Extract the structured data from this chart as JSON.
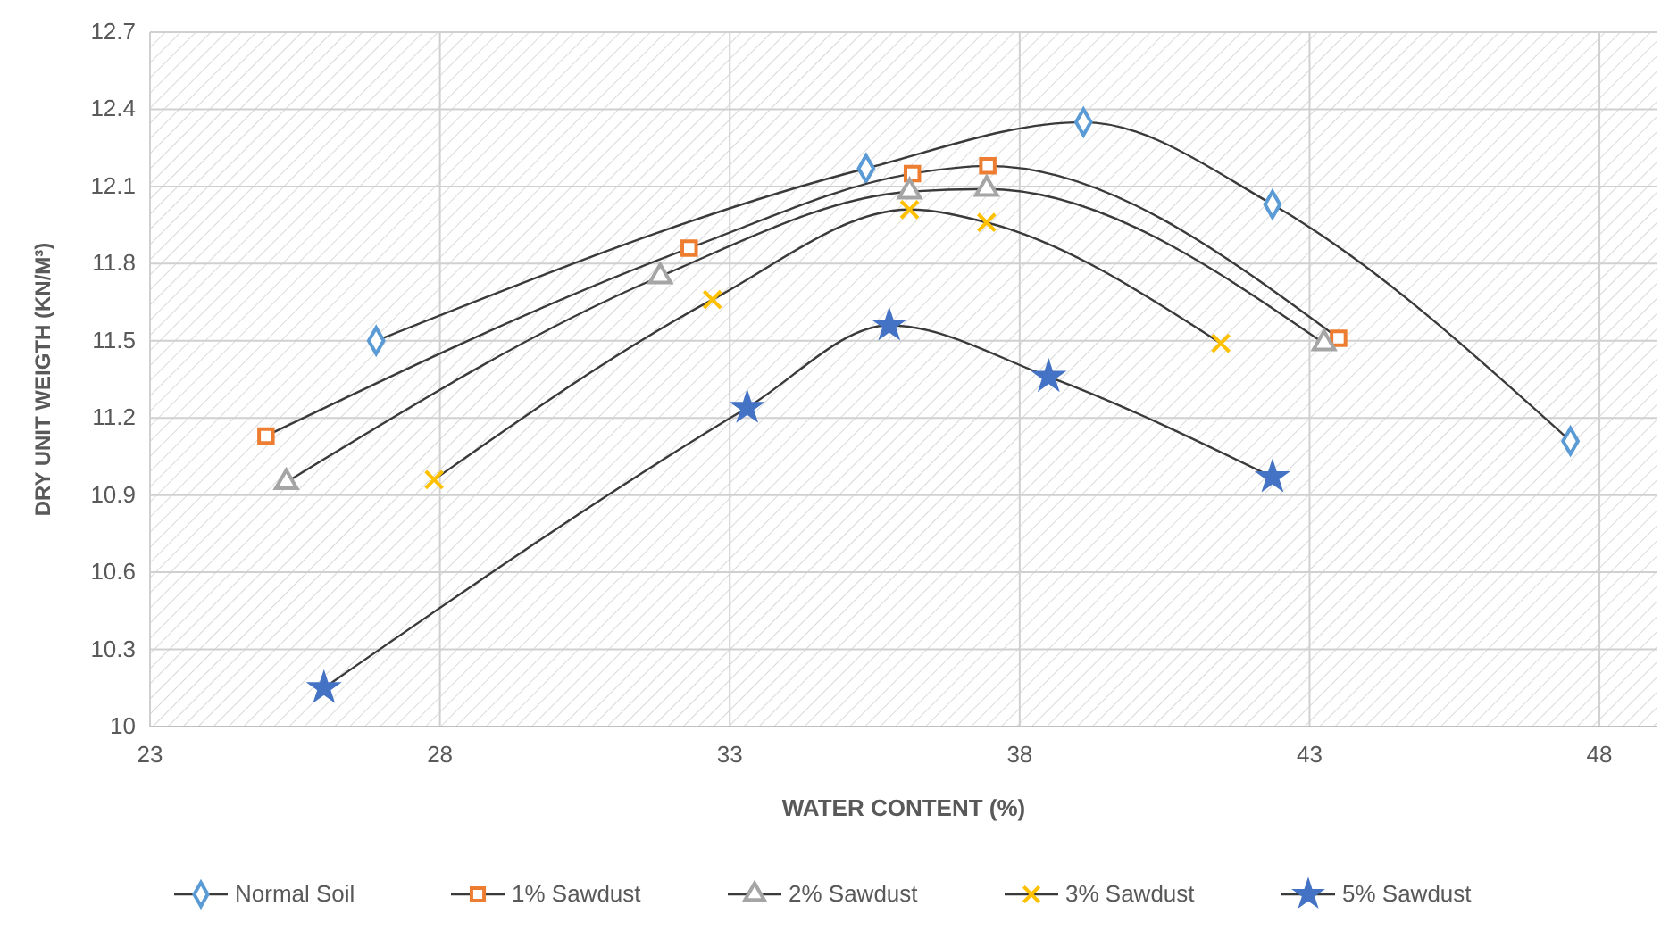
{
  "chart_data": {
    "type": "line",
    "xlabel": "WATER CONTENT (%)",
    "ylabel": "DRY UNIT WEIGTH (KN/M³)",
    "xlim": [
      23,
      49
    ],
    "xticks": [
      23,
      28,
      33,
      38,
      43,
      48
    ],
    "ylim": [
      10,
      12.7
    ],
    "yticks": [
      10,
      10.3,
      10.6,
      10.9,
      11.2,
      11.5,
      11.8,
      12.1,
      12.4,
      12.7
    ],
    "grid": true,
    "legend": "bottom",
    "series": [
      {
        "name": "Normal Soil",
        "color": "#5b9bd5",
        "marker": "diamond",
        "x": [
          26.9,
          35.35,
          39.1,
          42.36,
          47.5
        ],
        "values": [
          11.5,
          12.17,
          12.35,
          12.03,
          11.11
        ]
      },
      {
        "name": "1% Sawdust",
        "color": "#ed7d31",
        "marker": "square",
        "x": [
          25.0,
          32.3,
          36.15,
          37.45,
          43.5
        ],
        "values": [
          11.13,
          11.86,
          12.15,
          12.18,
          11.51
        ]
      },
      {
        "name": "2% Sawdust",
        "color": "#a5a5a5",
        "marker": "triangle",
        "x": [
          25.35,
          31.8,
          36.1,
          37.43,
          43.25
        ],
        "values": [
          10.95,
          11.75,
          12.08,
          12.09,
          11.49
        ]
      },
      {
        "name": "3% Sawdust",
        "color": "#ffc000",
        "marker": "cross",
        "x": [
          27.9,
          32.7,
          36.1,
          37.43,
          41.47
        ],
        "values": [
          10.96,
          11.66,
          12.01,
          11.96,
          11.49
        ]
      },
      {
        "name": "5% Sawdust",
        "color": "#4472c4",
        "marker": "star",
        "x": [
          26.0,
          33.3,
          35.75,
          38.5,
          42.36
        ],
        "values": [
          10.15,
          11.24,
          11.56,
          11.36,
          10.97
        ]
      }
    ]
  }
}
